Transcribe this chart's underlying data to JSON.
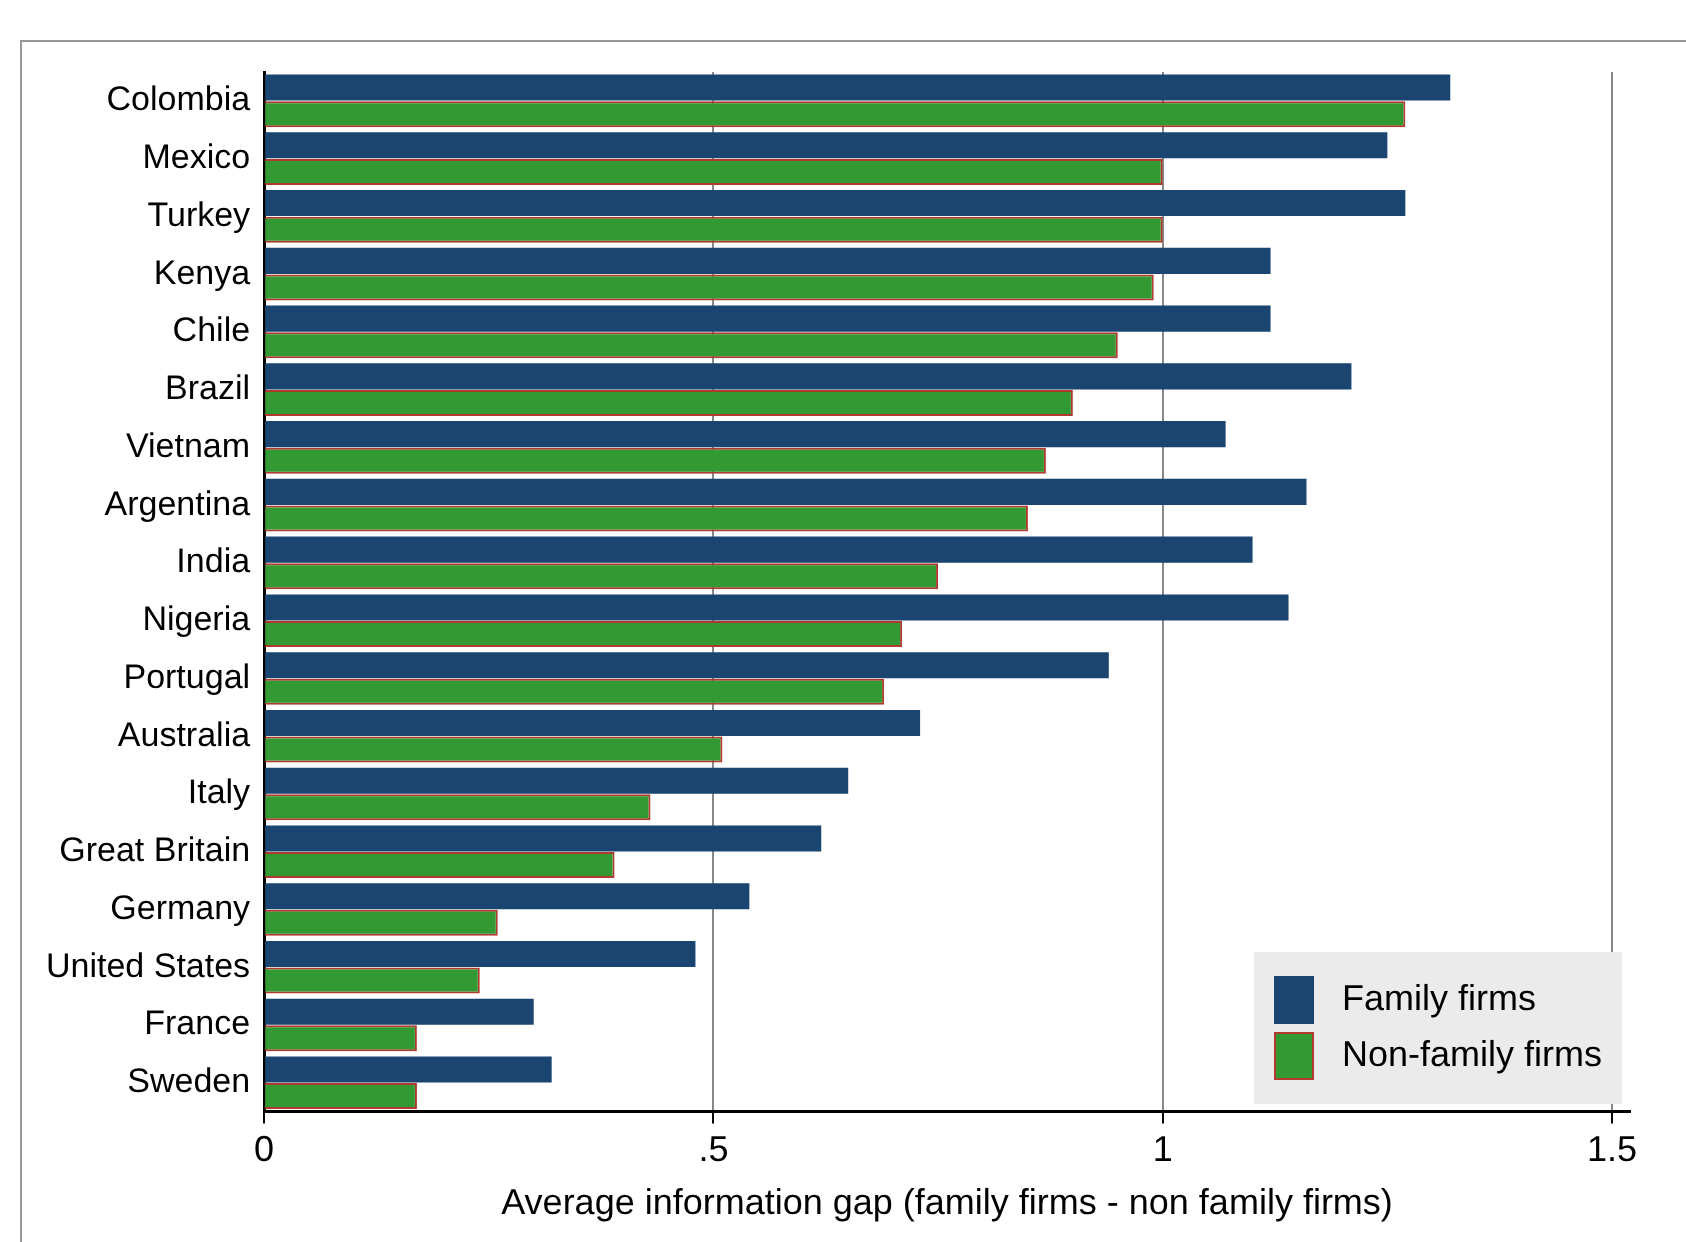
{
  "chart_data": {
    "type": "bar",
    "orientation": "horizontal",
    "xlabel": "Average information gap (family firms - non family firms)",
    "categories": [
      "Colombia",
      "Mexico",
      "Turkey",
      "Kenya",
      "Chile",
      "Brazil",
      "Vietnam",
      "Argentina",
      "India",
      "Nigeria",
      "Portugal",
      "Australia",
      "Italy",
      "Great Britain",
      "Germany",
      "United States",
      "France",
      "Sweden"
    ],
    "series": [
      {
        "name": "Family firms",
        "color": "#1a4570",
        "values": [
          1.32,
          1.25,
          1.27,
          1.12,
          1.12,
          1.21,
          1.07,
          1.16,
          1.1,
          1.14,
          0.94,
          0.73,
          0.65,
          0.62,
          0.54,
          0.48,
          0.3,
          0.32
        ]
      },
      {
        "name": "Non-family firms",
        "color": "#339933",
        "values": [
          1.27,
          1.0,
          1.0,
          0.99,
          0.95,
          0.9,
          0.87,
          0.85,
          0.75,
          0.71,
          0.69,
          0.51,
          0.43,
          0.39,
          0.26,
          0.24,
          0.17,
          0.17
        ]
      }
    ],
    "xlim": [
      0,
      1.52
    ],
    "xticks": [
      0,
      {
        "value": 0.5,
        "label": ".5"
      },
      1,
      1.5
    ],
    "grid": "x",
    "legend": "bottom right"
  }
}
